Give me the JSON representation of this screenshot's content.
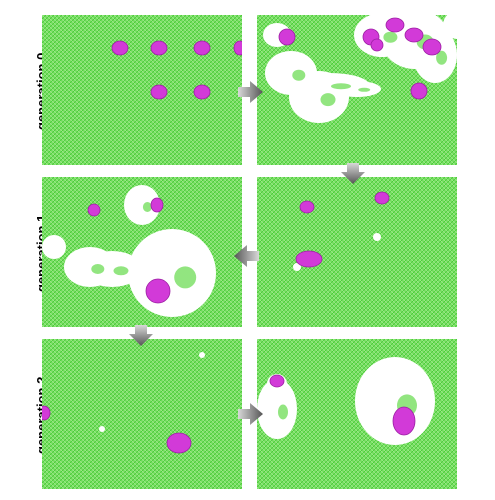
{
  "row_labels": [
    "generation 0",
    "generation 1",
    "generation 2"
  ],
  "colors": {
    "grid_green": "#7fe06a",
    "grid_line": "#4ccc3a",
    "hole": "#ffffff",
    "cluster_magenta": "#d23ad8",
    "cluster_edge": "#9c1fa3",
    "arrow_light": "#d8d8d8",
    "arrow_dark": "#555555"
  },
  "panels": [
    {
      "row": 0,
      "col": 0,
      "id": "gen0-initial"
    },
    {
      "row": 0,
      "col": 1,
      "id": "gen0-evolved"
    },
    {
      "row": 1,
      "col": 1,
      "id": "gen1-initial"
    },
    {
      "row": 1,
      "col": 0,
      "id": "gen1-evolved"
    },
    {
      "row": 2,
      "col": 0,
      "id": "gen2-initial"
    },
    {
      "row": 2,
      "col": 1,
      "id": "gen2-evolved"
    }
  ],
  "arrows": [
    {
      "from": "gen0-initial",
      "to": "gen0-evolved",
      "direction": "right"
    },
    {
      "from": "gen0-evolved",
      "to": "gen1-initial",
      "direction": "down"
    },
    {
      "from": "gen1-initial",
      "to": "gen1-evolved",
      "direction": "left"
    },
    {
      "from": "gen1-evolved",
      "to": "gen2-initial",
      "direction": "down"
    },
    {
      "from": "gen2-initial",
      "to": "gen2-evolved",
      "direction": "right"
    }
  ]
}
